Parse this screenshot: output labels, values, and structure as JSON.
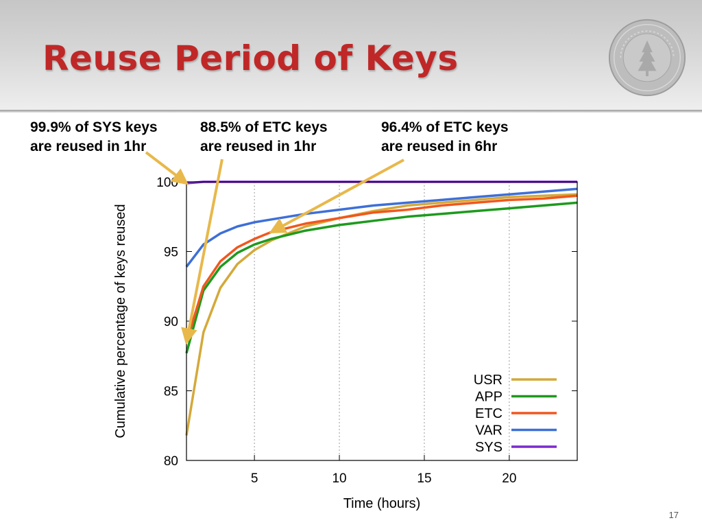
{
  "slide": {
    "title": "Reuse Period of Keys",
    "page_number": "17",
    "seal_text": "LELAND STANFORD JUNIOR UNIVERSITY 1891"
  },
  "annotations": [
    {
      "line1": "99.9% of SYS keys",
      "line2": "are reused in 1hr"
    },
    {
      "line1": "88.5% of ETC keys",
      "line2": "are reused in 1hr"
    },
    {
      "line1": "96.4% of ETC keys",
      "line2": "are reused in 6hr"
    }
  ],
  "colors": {
    "title": "#c02727",
    "arrow": "#e8b84a"
  },
  "chart_data": {
    "type": "line",
    "xlabel": "Time (hours)",
    "ylabel": "Cumulative percentage of keys reused",
    "xlim": [
      1,
      24
    ],
    "ylim": [
      80,
      100
    ],
    "xticks": [
      5,
      10,
      15,
      20
    ],
    "yticks": [
      80,
      85,
      90,
      95,
      100
    ],
    "x_grid": true,
    "legend_position": "bottom-right",
    "series": [
      {
        "name": "USR",
        "color": "#d4a93a",
        "x": [
          1,
          2,
          3,
          4,
          5,
          6,
          8,
          10,
          12,
          14,
          16,
          18,
          20,
          22,
          24
        ],
        "y": [
          81.8,
          89.2,
          92.4,
          94.1,
          95.1,
          95.8,
          96.8,
          97.4,
          97.9,
          98.3,
          98.5,
          98.7,
          98.9,
          99.0,
          99.1
        ]
      },
      {
        "name": "APP",
        "color": "#1e9a1e",
        "x": [
          1,
          2,
          3,
          4,
          5,
          6,
          8,
          10,
          12,
          14,
          16,
          18,
          20,
          22,
          24
        ],
        "y": [
          87.7,
          92.2,
          93.9,
          94.9,
          95.5,
          95.9,
          96.5,
          96.9,
          97.2,
          97.5,
          97.7,
          97.9,
          98.1,
          98.3,
          98.5
        ]
      },
      {
        "name": "ETC",
        "color": "#f0571e",
        "x": [
          1,
          2,
          3,
          4,
          5,
          6,
          8,
          10,
          12,
          14,
          16,
          18,
          20,
          22,
          24
        ],
        "y": [
          88.5,
          92.5,
          94.3,
          95.3,
          95.9,
          96.4,
          97.0,
          97.4,
          97.8,
          98.0,
          98.3,
          98.5,
          98.7,
          98.8,
          99.0
        ]
      },
      {
        "name": "VAR",
        "color": "#3d6fd8",
        "x": [
          1,
          2,
          3,
          4,
          5,
          6,
          8,
          10,
          12,
          14,
          16,
          18,
          20,
          22,
          24
        ],
        "y": [
          93.9,
          95.5,
          96.3,
          96.8,
          97.1,
          97.3,
          97.7,
          98.0,
          98.3,
          98.5,
          98.7,
          98.9,
          99.1,
          99.3,
          99.5
        ]
      },
      {
        "name": "SYS",
        "color": "#7a2bd0",
        "x": [
          1,
          2,
          3,
          6,
          10,
          15,
          20,
          24
        ],
        "y": [
          99.9,
          100.0,
          100.0,
          100.0,
          100.0,
          100.0,
          100.0,
          100.0
        ]
      }
    ]
  }
}
